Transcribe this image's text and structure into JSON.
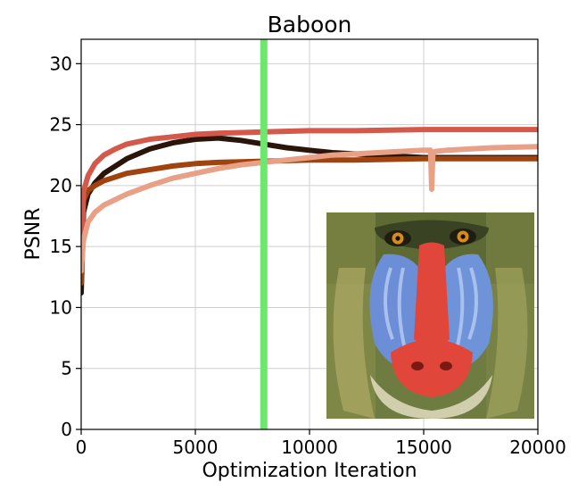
{
  "chart_data": {
    "type": "line",
    "title": "Baboon",
    "xlabel": "Optimization Iteration",
    "ylabel": "PSNR",
    "xlim": [
      0,
      20000
    ],
    "ylim": [
      0,
      32
    ],
    "grid": true,
    "xticks": [
      0,
      5000,
      10000,
      15000,
      20000
    ],
    "xtick_labels": [
      "0",
      "5000",
      "10000",
      "15000",
      "20000"
    ],
    "yticks": [
      0,
      5,
      10,
      15,
      20,
      25,
      30
    ],
    "ytick_labels": [
      "0",
      "5",
      "10",
      "15",
      "20",
      "25",
      "30"
    ],
    "vertical_marker": {
      "x": 8000,
      "color": "#6ee76e"
    },
    "series": [
      {
        "name": "dark-brown",
        "color": "#2b150a",
        "x": [
          0,
          100,
          300,
          600,
          1000,
          2000,
          3000,
          4000,
          5000,
          6000,
          7000,
          8000,
          9000,
          10000,
          11000,
          12000,
          13000,
          14000,
          15000,
          17000,
          20000
        ],
        "values": [
          11.2,
          17.8,
          19.3,
          20.2,
          21.0,
          22.2,
          23.0,
          23.5,
          23.8,
          23.9,
          23.7,
          23.4,
          23.1,
          22.9,
          22.7,
          22.6,
          22.5,
          22.4,
          22.3,
          22.3,
          22.3
        ]
      },
      {
        "name": "orange-brown",
        "color": "#a0430f",
        "x": [
          0,
          100,
          300,
          600,
          1000,
          2000,
          3000,
          4000,
          5000,
          6000,
          8000,
          10000,
          12000,
          15000,
          17000,
          20000
        ],
        "values": [
          12.0,
          18.8,
          19.6,
          20.0,
          20.4,
          21.0,
          21.3,
          21.6,
          21.8,
          21.9,
          22.0,
          22.1,
          22.1,
          22.2,
          22.2,
          22.2
        ]
      },
      {
        "name": "red",
        "color": "#d4594a",
        "x": [
          0,
          100,
          300,
          600,
          1000,
          1500,
          2000,
          3000,
          4000,
          5000,
          6000,
          8000,
          10000,
          12000,
          15000,
          17000,
          20000
        ],
        "values": [
          13.0,
          19.5,
          20.8,
          21.8,
          22.5,
          23.0,
          23.4,
          23.8,
          24.0,
          24.2,
          24.3,
          24.4,
          24.5,
          24.5,
          24.6,
          24.6,
          24.6
        ]
      },
      {
        "name": "salmon",
        "color": "#e8a087",
        "x": [
          0,
          100,
          300,
          600,
          1000,
          2000,
          3000,
          4000,
          5000,
          6000,
          7000,
          8000,
          9000,
          10000,
          11000,
          12000,
          13000,
          14000,
          15000,
          15300,
          15350,
          15400,
          15500,
          16000,
          17000,
          18000,
          20000
        ],
        "values": [
          13.0,
          15.5,
          17.0,
          17.8,
          18.4,
          19.3,
          20.0,
          20.6,
          21.0,
          21.4,
          21.7,
          21.9,
          22.1,
          22.3,
          22.5,
          22.6,
          22.7,
          22.8,
          22.9,
          22.9,
          19.7,
          22.5,
          22.8,
          22.9,
          23.0,
          23.1,
          23.2
        ]
      }
    ]
  },
  "inset_image": {
    "name": "baboon-photo",
    "palette": {
      "fur_dark": "#3f4a2a",
      "fur_mid": "#7d8a48",
      "fur_light": "#b9b56e",
      "cheek_blue": "#6b8ed6",
      "nose_red": "#e0473a",
      "eye_amber": "#d98a1c",
      "whisker": "#e8e2c8"
    }
  }
}
